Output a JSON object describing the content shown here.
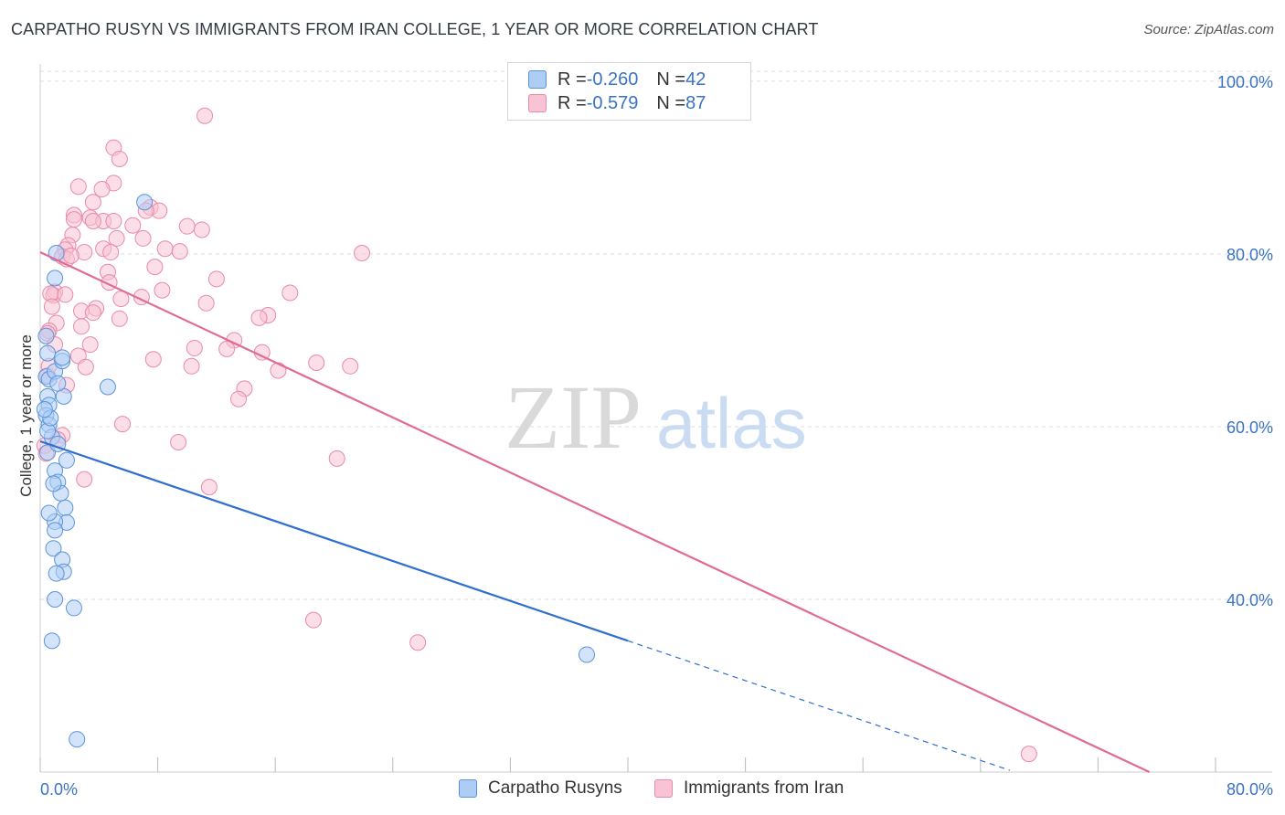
{
  "title": "CARPATHO RUSYN VS IMMIGRANTS FROM IRAN COLLEGE, 1 YEAR OR MORE CORRELATION CHART",
  "source": "Source: ZipAtlas.com",
  "colors": {
    "blue_fill": "#aecdf5",
    "blue_stroke": "#5b93da",
    "blue_line": "#2f6fcf",
    "pink_fill": "#f8c3d4",
    "pink_stroke": "#e88aa8",
    "pink_line": "#e06b96",
    "axis_text": "#3a73c5",
    "grid": "#dddddd"
  },
  "legend": {
    "r_label": "R = ",
    "n_label": "N = ",
    "blue": {
      "r": "-0.260",
      "n": "42"
    },
    "pink": {
      "r": "-0.579",
      "n": "87"
    }
  },
  "bottom_legend": {
    "blue": "Carpatho Rusyns",
    "pink": "Immigrants from Iran"
  },
  "watermark": {
    "zip": "ZIP",
    "atlas": "atlas"
  },
  "chart_data": {
    "type": "scatter",
    "title": "CARPATHO RUSYN VS IMMIGRANTS FROM IRAN COLLEGE, 1 YEAR OR MORE CORRELATION CHART",
    "xlabel": "",
    "ylabel": "College, 1 year or more",
    "xlim": [
      0,
      80
    ],
    "ylim": [
      20,
      102
    ],
    "x_tick_labels": [
      {
        "value": 0,
        "label": "0.0%"
      },
      {
        "value": 80,
        "label": "80.0%"
      }
    ],
    "y_ticks": [
      {
        "value": 100,
        "label": "100.0%"
      },
      {
        "value": 80,
        "label": "80.0%"
      },
      {
        "value": 60,
        "label": "60.0%"
      },
      {
        "value": 40,
        "label": "40.0%"
      }
    ],
    "x_minor_ticks": [
      0,
      8,
      16,
      24,
      32,
      40,
      48,
      56,
      64,
      72,
      80
    ],
    "grid": true,
    "series": [
      {
        "name": "Carpatho Rusyns",
        "color": "blue",
        "r": -0.26,
        "n": 42,
        "points": [
          [
            0.5,
            68.5
          ],
          [
            0.4,
            65.8
          ],
          [
            0.5,
            63.5
          ],
          [
            0.6,
            62.5
          ],
          [
            0.4,
            61.3
          ],
          [
            0.6,
            60.2
          ],
          [
            0.8,
            58.8
          ],
          [
            0.5,
            57.0
          ],
          [
            1.0,
            54.9
          ],
          [
            1.2,
            53.6
          ],
          [
            1.4,
            52.3
          ],
          [
            0.6,
            65.5
          ],
          [
            1.0,
            66.4
          ],
          [
            1.5,
            67.6
          ],
          [
            1.5,
            68.0
          ],
          [
            1.6,
            63.5
          ],
          [
            1.8,
            56.1
          ],
          [
            1.7,
            50.6
          ],
          [
            1.8,
            48.9
          ],
          [
            1.0,
            49.0
          ],
          [
            1.0,
            48.0
          ],
          [
            0.9,
            45.9
          ],
          [
            1.5,
            44.6
          ],
          [
            1.6,
            43.2
          ],
          [
            1.1,
            43.0
          ],
          [
            1.0,
            40.0
          ],
          [
            2.3,
            39.0
          ],
          [
            0.8,
            35.2
          ],
          [
            1.0,
            77.2
          ],
          [
            1.1,
            80.1
          ],
          [
            7.1,
            86.0
          ],
          [
            4.6,
            64.6
          ],
          [
            37.2,
            33.6
          ],
          [
            2.5,
            23.8
          ],
          [
            0.5,
            59.5
          ],
          [
            0.7,
            61.0
          ],
          [
            1.2,
            58.0
          ],
          [
            0.3,
            62.0
          ],
          [
            0.4,
            70.5
          ],
          [
            0.9,
            53.4
          ],
          [
            0.6,
            50.0
          ],
          [
            1.2,
            65.0
          ]
        ],
        "trend": {
          "x1": 0,
          "y1": 58.3,
          "x2": 40,
          "y2": 35.2,
          "dashed_to_x": 66,
          "dashed_to_y": 20.2
        }
      },
      {
        "name": "Immigrants from Iran",
        "color": "pink",
        "r": -0.579,
        "n": 87,
        "points": [
          [
            11.2,
            96.0
          ],
          [
            5.0,
            92.3
          ],
          [
            5.4,
            91.0
          ],
          [
            5.0,
            88.2
          ],
          [
            2.6,
            87.8
          ],
          [
            4.2,
            87.5
          ],
          [
            3.6,
            86.0
          ],
          [
            7.5,
            85.4
          ],
          [
            8.1,
            85.0
          ],
          [
            7.2,
            85.0
          ],
          [
            2.3,
            84.5
          ],
          [
            2.3,
            84.0
          ],
          [
            3.4,
            84.2
          ],
          [
            4.3,
            83.8
          ],
          [
            5.0,
            83.8
          ],
          [
            3.6,
            83.8
          ],
          [
            6.3,
            83.3
          ],
          [
            10.0,
            83.2
          ],
          [
            11.0,
            82.8
          ],
          [
            2.2,
            82.2
          ],
          [
            7.0,
            81.8
          ],
          [
            5.2,
            81.8
          ],
          [
            1.9,
            81.0
          ],
          [
            1.7,
            80.5
          ],
          [
            4.3,
            80.6
          ],
          [
            8.5,
            80.6
          ],
          [
            9.5,
            80.3
          ],
          [
            3.0,
            80.2
          ],
          [
            4.8,
            80.2
          ],
          [
            21.9,
            80.1
          ],
          [
            1.5,
            79.7
          ],
          [
            1.8,
            79.4
          ],
          [
            7.8,
            78.5
          ],
          [
            4.6,
            77.9
          ],
          [
            12.0,
            77.1
          ],
          [
            4.7,
            76.7
          ],
          [
            8.3,
            75.8
          ],
          [
            17.0,
            75.5
          ],
          [
            1.0,
            75.6
          ],
          [
            0.9,
            75.2
          ],
          [
            0.7,
            75.4
          ],
          [
            1.7,
            75.3
          ],
          [
            6.9,
            75.0
          ],
          [
            5.5,
            74.8
          ],
          [
            11.3,
            74.3
          ],
          [
            0.8,
            73.9
          ],
          [
            3.8,
            73.7
          ],
          [
            2.8,
            73.4
          ],
          [
            3.6,
            73.2
          ],
          [
            15.5,
            72.9
          ],
          [
            14.9,
            72.6
          ],
          [
            5.4,
            72.5
          ],
          [
            1.1,
            72.0
          ],
          [
            2.8,
            71.6
          ],
          [
            0.6,
            71.1
          ],
          [
            0.5,
            70.8
          ],
          [
            13.2,
            70.0
          ],
          [
            3.4,
            69.5
          ],
          [
            10.5,
            69.1
          ],
          [
            12.7,
            69.0
          ],
          [
            15.1,
            68.6
          ],
          [
            2.6,
            68.2
          ],
          [
            7.7,
            67.8
          ],
          [
            18.8,
            67.4
          ],
          [
            21.1,
            67.0
          ],
          [
            3.1,
            66.9
          ],
          [
            10.3,
            67.0
          ],
          [
            16.2,
            66.5
          ],
          [
            0.5,
            65.9
          ],
          [
            1.8,
            64.8
          ],
          [
            13.9,
            64.4
          ],
          [
            13.5,
            63.2
          ],
          [
            5.6,
            60.3
          ],
          [
            1.5,
            59.0
          ],
          [
            9.4,
            58.2
          ],
          [
            1.2,
            58.5
          ],
          [
            0.3,
            57.8
          ],
          [
            0.4,
            56.9
          ],
          [
            20.2,
            56.3
          ],
          [
            3.0,
            53.9
          ],
          [
            11.5,
            53.0
          ],
          [
            18.6,
            37.6
          ],
          [
            25.7,
            35.0
          ],
          [
            67.3,
            22.1
          ],
          [
            1.0,
            69.5
          ],
          [
            0.6,
            67.0
          ],
          [
            2.1,
            79.8
          ]
        ],
        "trend": {
          "x1": 0,
          "y1": 80.2,
          "x2": 75.5,
          "y2": 20
        }
      }
    ]
  }
}
